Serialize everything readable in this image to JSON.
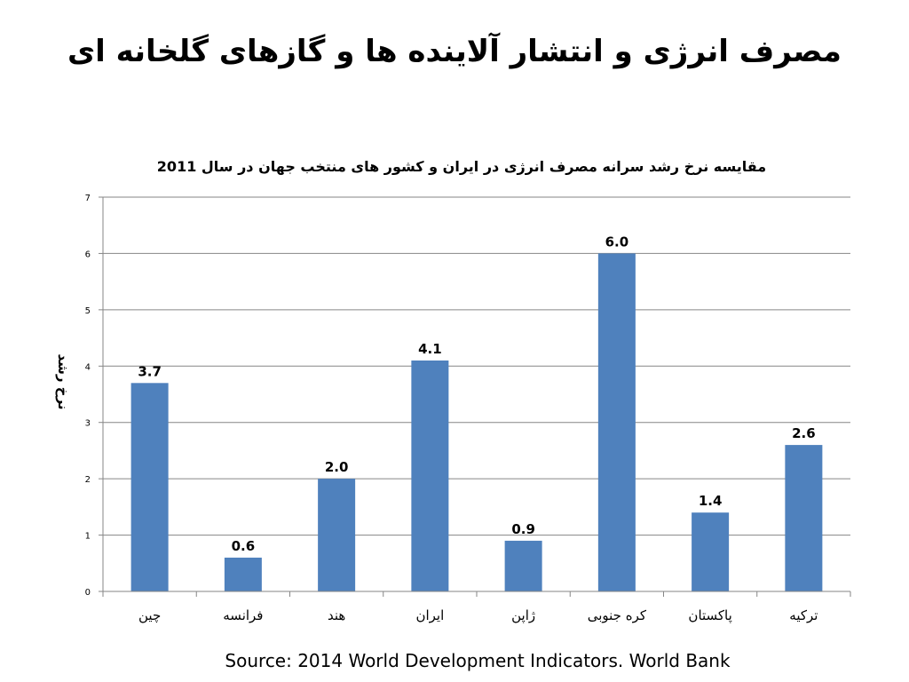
{
  "slide": {
    "title": "مصرف انرژی و انتشار آلاینده ها و گازهای گلخانه ای",
    "source": "Source: 2014 World Development Indicators. World Bank"
  },
  "chart_data": {
    "type": "bar",
    "title": "مقایسه نرخ رشد سرانه مصرف انرژی در ایران و کشور های منتخب جهان در سال 2011",
    "xlabel": "",
    "ylabel": "نرخ رشد",
    "categories": [
      "چین",
      "فرانسه",
      "هند",
      "ایران",
      "ژاپن",
      "کره جنوبی",
      "پاکستان",
      "ترکیه"
    ],
    "values": [
      3.7,
      0.6,
      2.0,
      4.1,
      0.9,
      6.0,
      1.4,
      2.6
    ],
    "value_labels": [
      "3.7",
      "0.6",
      "2.0",
      "4.1",
      "0.9",
      "6.0",
      "1.4",
      "2.6"
    ],
    "ylim": [
      0,
      7
    ],
    "yticks": [
      "0",
      "1",
      "2",
      "3",
      "4",
      "5",
      "6",
      "7"
    ],
    "grid": true,
    "bar_color": "#4F81BD",
    "grid_color": "#868686"
  }
}
